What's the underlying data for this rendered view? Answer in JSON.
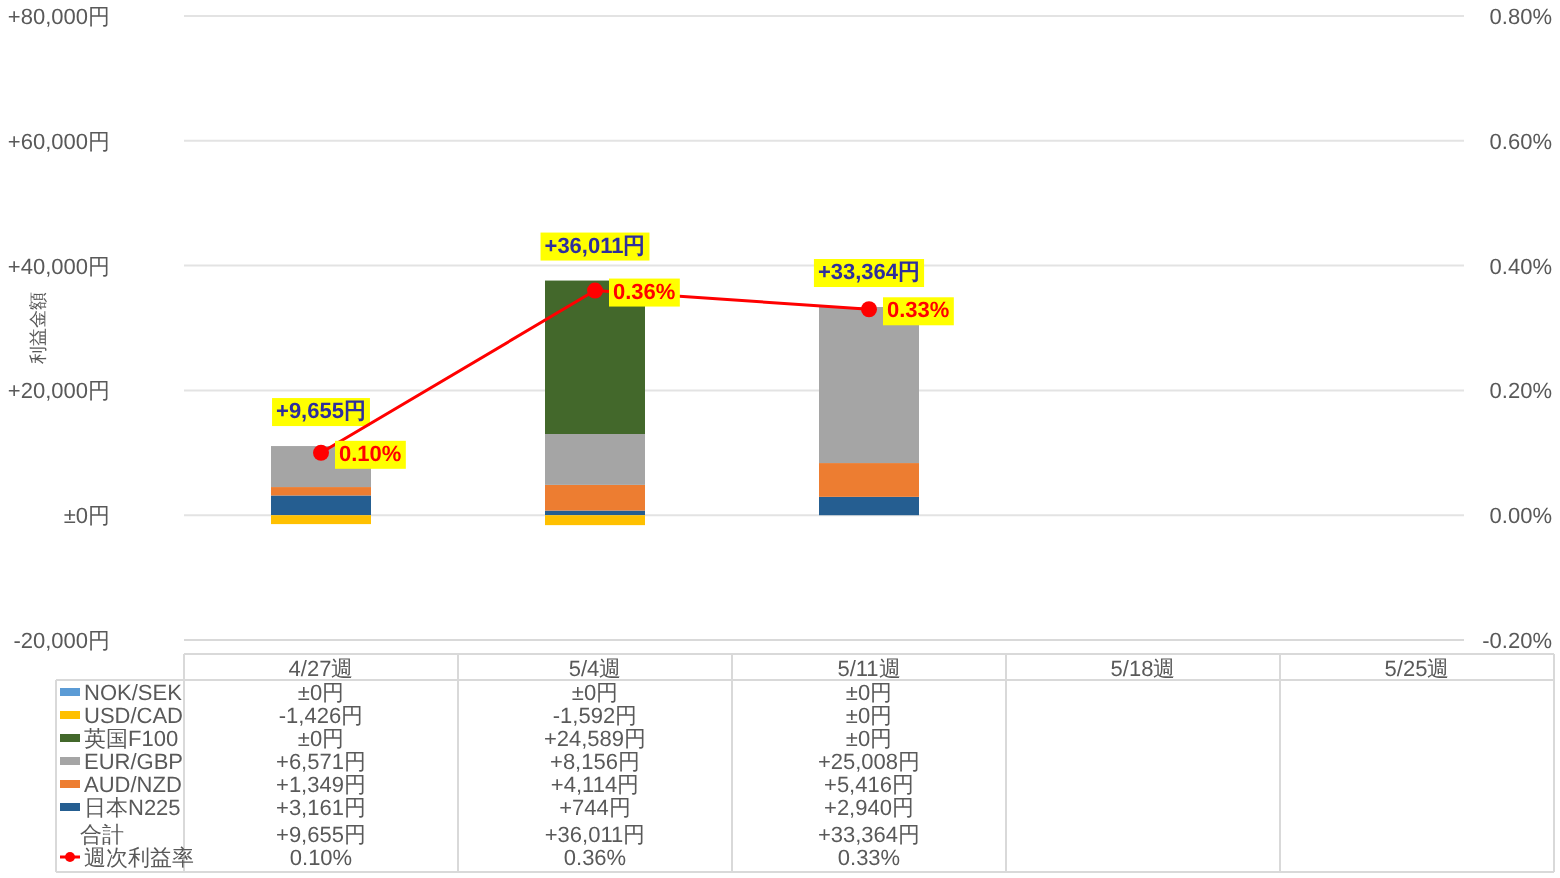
{
  "chart_data": {
    "type": "bar",
    "stacked": true,
    "ylabel": "利益金額",
    "categories": [
      "4/27週",
      "5/4週",
      "5/11週",
      "5/18週",
      "5/25週"
    ],
    "series": [
      {
        "name": "日本N225",
        "color": "#255e91",
        "values": [
          3161,
          744,
          2940,
          null,
          null
        ],
        "value_labels": [
          "+3,161円",
          "+744円",
          "+2,940円",
          null,
          null
        ]
      },
      {
        "name": "AUD/NZD",
        "color": "#ed7d31",
        "values": [
          1349,
          4114,
          5416,
          null,
          null
        ],
        "value_labels": [
          "+1,349円",
          "+4,114円",
          "+5,416円",
          null,
          null
        ]
      },
      {
        "name": "EUR/GBP",
        "color": "#a5a5a5",
        "values": [
          6571,
          8156,
          25008,
          null,
          null
        ],
        "value_labels": [
          "+6,571円",
          "+8,156円",
          "+25,008円",
          null,
          null
        ]
      },
      {
        "name": "英国F100",
        "color": "#43682b",
        "values": [
          0,
          24589,
          0,
          null,
          null
        ],
        "value_labels": [
          "±0円",
          "+24,589円",
          "±0円",
          null,
          null
        ]
      },
      {
        "name": "USD/CAD",
        "color": "#ffc000",
        "values": [
          -1426,
          -1592,
          0,
          null,
          null
        ],
        "value_labels": [
          "-1,426円",
          "-1,592円",
          "±0円",
          null,
          null
        ]
      },
      {
        "name": "NOK/SEK",
        "color": "#5b9bd5",
        "values": [
          0,
          0,
          0,
          null,
          null
        ],
        "value_labels": [
          "±0円",
          "±0円",
          "±0円",
          null,
          null
        ]
      },
      {
        "name": "週次利益率",
        "type": "line",
        "axis": "y2",
        "color": "#ff0000",
        "values": [
          0.1,
          0.36,
          0.33,
          null,
          null
        ],
        "value_labels": [
          "0.10%",
          "0.36%",
          "0.33%",
          null,
          null
        ]
      }
    ],
    "totals": [
      "+9,655円",
      "+36,011円",
      "+33,364円",
      null,
      null
    ],
    "annotations": [
      "合計"
    ],
    "ylim": [
      -20000,
      80000
    ],
    "yticks": [
      {
        "value": -20000,
        "label": "-20,000円"
      },
      {
        "value": 0,
        "label": "±0円"
      },
      {
        "value": 20000,
        "label": "+20,000円"
      },
      {
        "value": 40000,
        "label": "+40,000円"
      },
      {
        "value": 60000,
        "label": "+60,000円"
      },
      {
        "value": 80000,
        "label": "+80,000円"
      }
    ],
    "y2lim": [
      -0.2,
      0.8
    ],
    "y2ticks": [
      {
        "value": -0.2,
        "label": "-0.20%"
      },
      {
        "value": 0,
        "label": "0.00%"
      },
      {
        "value": 0.2,
        "label": "0.20%"
      },
      {
        "value": 0.4,
        "label": "0.40%"
      },
      {
        "value": 0.6,
        "label": "0.60%"
      },
      {
        "value": 0.8,
        "label": "0.80%"
      }
    ],
    "grid": "y",
    "legend": "bottom left",
    "marker": "circle"
  }
}
